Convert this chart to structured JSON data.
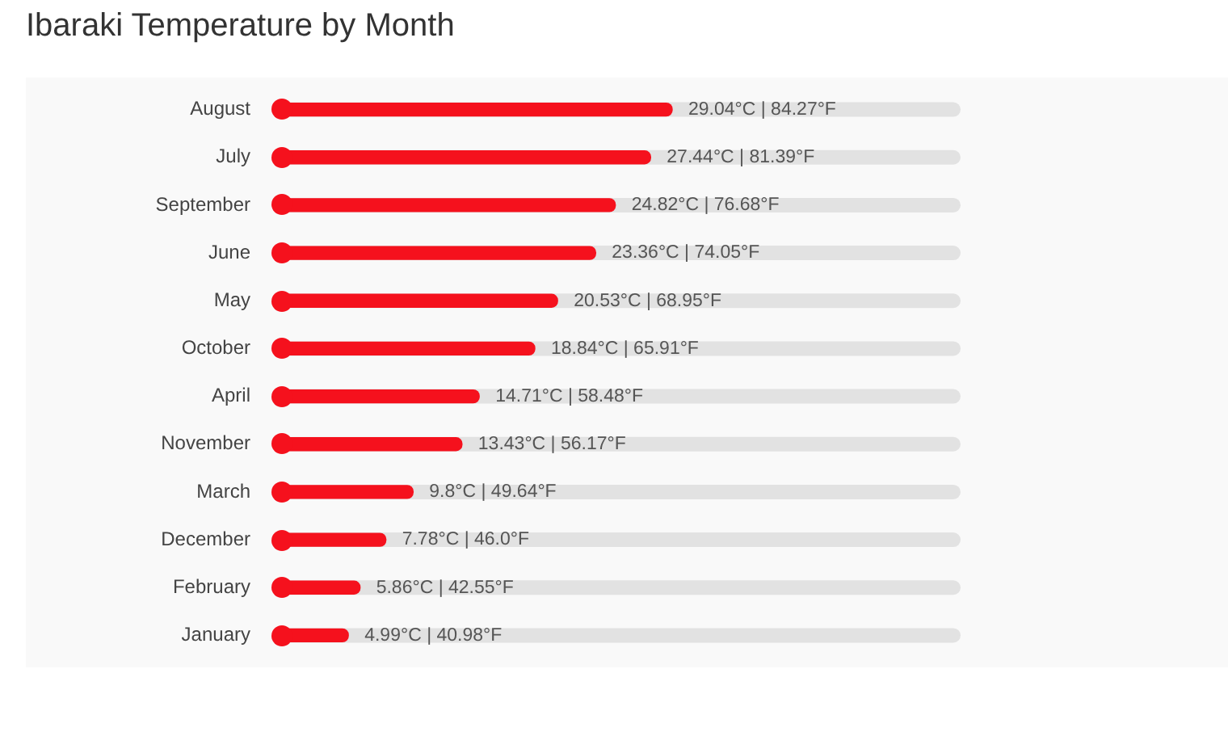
{
  "chart_data": {
    "type": "bar",
    "orientation": "horizontal",
    "title": "Ibaraki Temperature by Month",
    "categories": [
      "August",
      "July",
      "September",
      "June",
      "May",
      "October",
      "April",
      "November",
      "March",
      "December",
      "February",
      "January"
    ],
    "values": [
      29.04,
      27.44,
      24.82,
      23.36,
      20.53,
      18.84,
      14.71,
      13.43,
      9.8,
      7.78,
      5.86,
      4.99
    ],
    "value_labels": [
      "29.04°C | 84.27°F",
      "27.44°C | 81.39°F",
      "24.82°C | 76.68°F",
      "23.36°C | 74.05°F",
      "20.53°C | 68.95°F",
      "18.84°C | 65.91°F",
      "14.71°C | 58.48°F",
      "13.43°C | 56.17°F",
      "9.8°C | 49.64°F",
      "7.78°C | 46.0°F",
      "5.86°C | 42.55°F",
      "4.99°C | 40.98°F"
    ],
    "color": "#f5111d",
    "tick_labels": "y"
  }
}
